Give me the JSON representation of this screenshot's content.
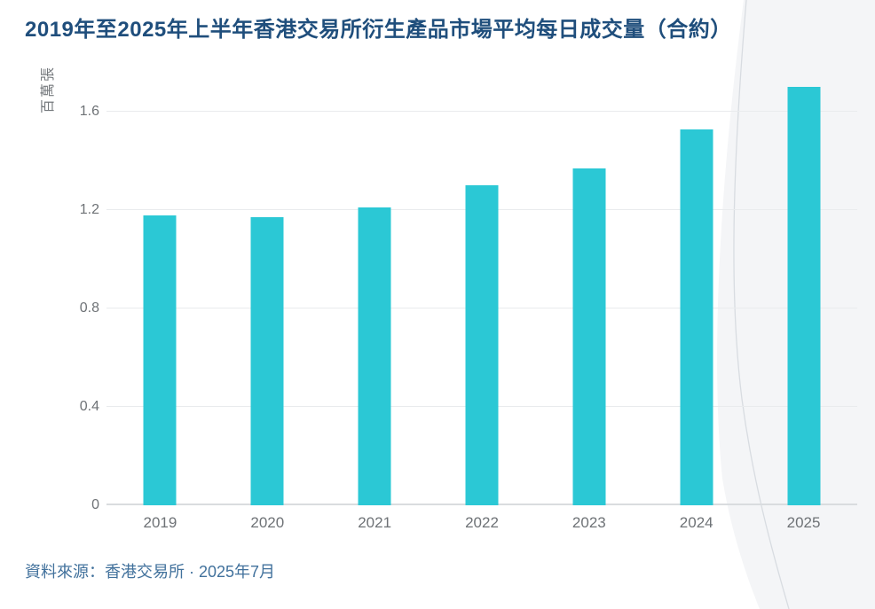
{
  "chart_data": {
    "type": "bar",
    "title": "2019年至2025年上半年香港交易所衍生產品市場平均每日成交量（合約）",
    "ylabel": "百萬張",
    "xlabel": "",
    "categories": [
      "2019",
      "2020",
      "2021",
      "2022",
      "2023",
      "2024",
      "2025"
    ],
    "values": [
      1.18,
      1.17,
      1.21,
      1.3,
      1.37,
      1.53,
      1.7
    ],
    "ylim": [
      0,
      1.73
    ],
    "yticks": [
      0,
      0.4,
      0.8,
      1.2,
      1.6
    ],
    "ytick_labels": [
      "0",
      "0.4",
      "0.8",
      "1.2",
      "1.6"
    ],
    "grid": true,
    "legend": false,
    "bar_color": "#2BC8D5"
  },
  "source_note": "資料來源：香港交易所 · 2025年7月",
  "colors": {
    "title": "#1F4E7C",
    "source": "#41719C",
    "axis_text": "#6E7276",
    "gridline": "#E9EBED",
    "zero_axis_line": "#D9DCDF",
    "bar": "#2BC8D5",
    "decor_fill": "#F4F5F7",
    "decor_line": "#D8DCE1"
  }
}
